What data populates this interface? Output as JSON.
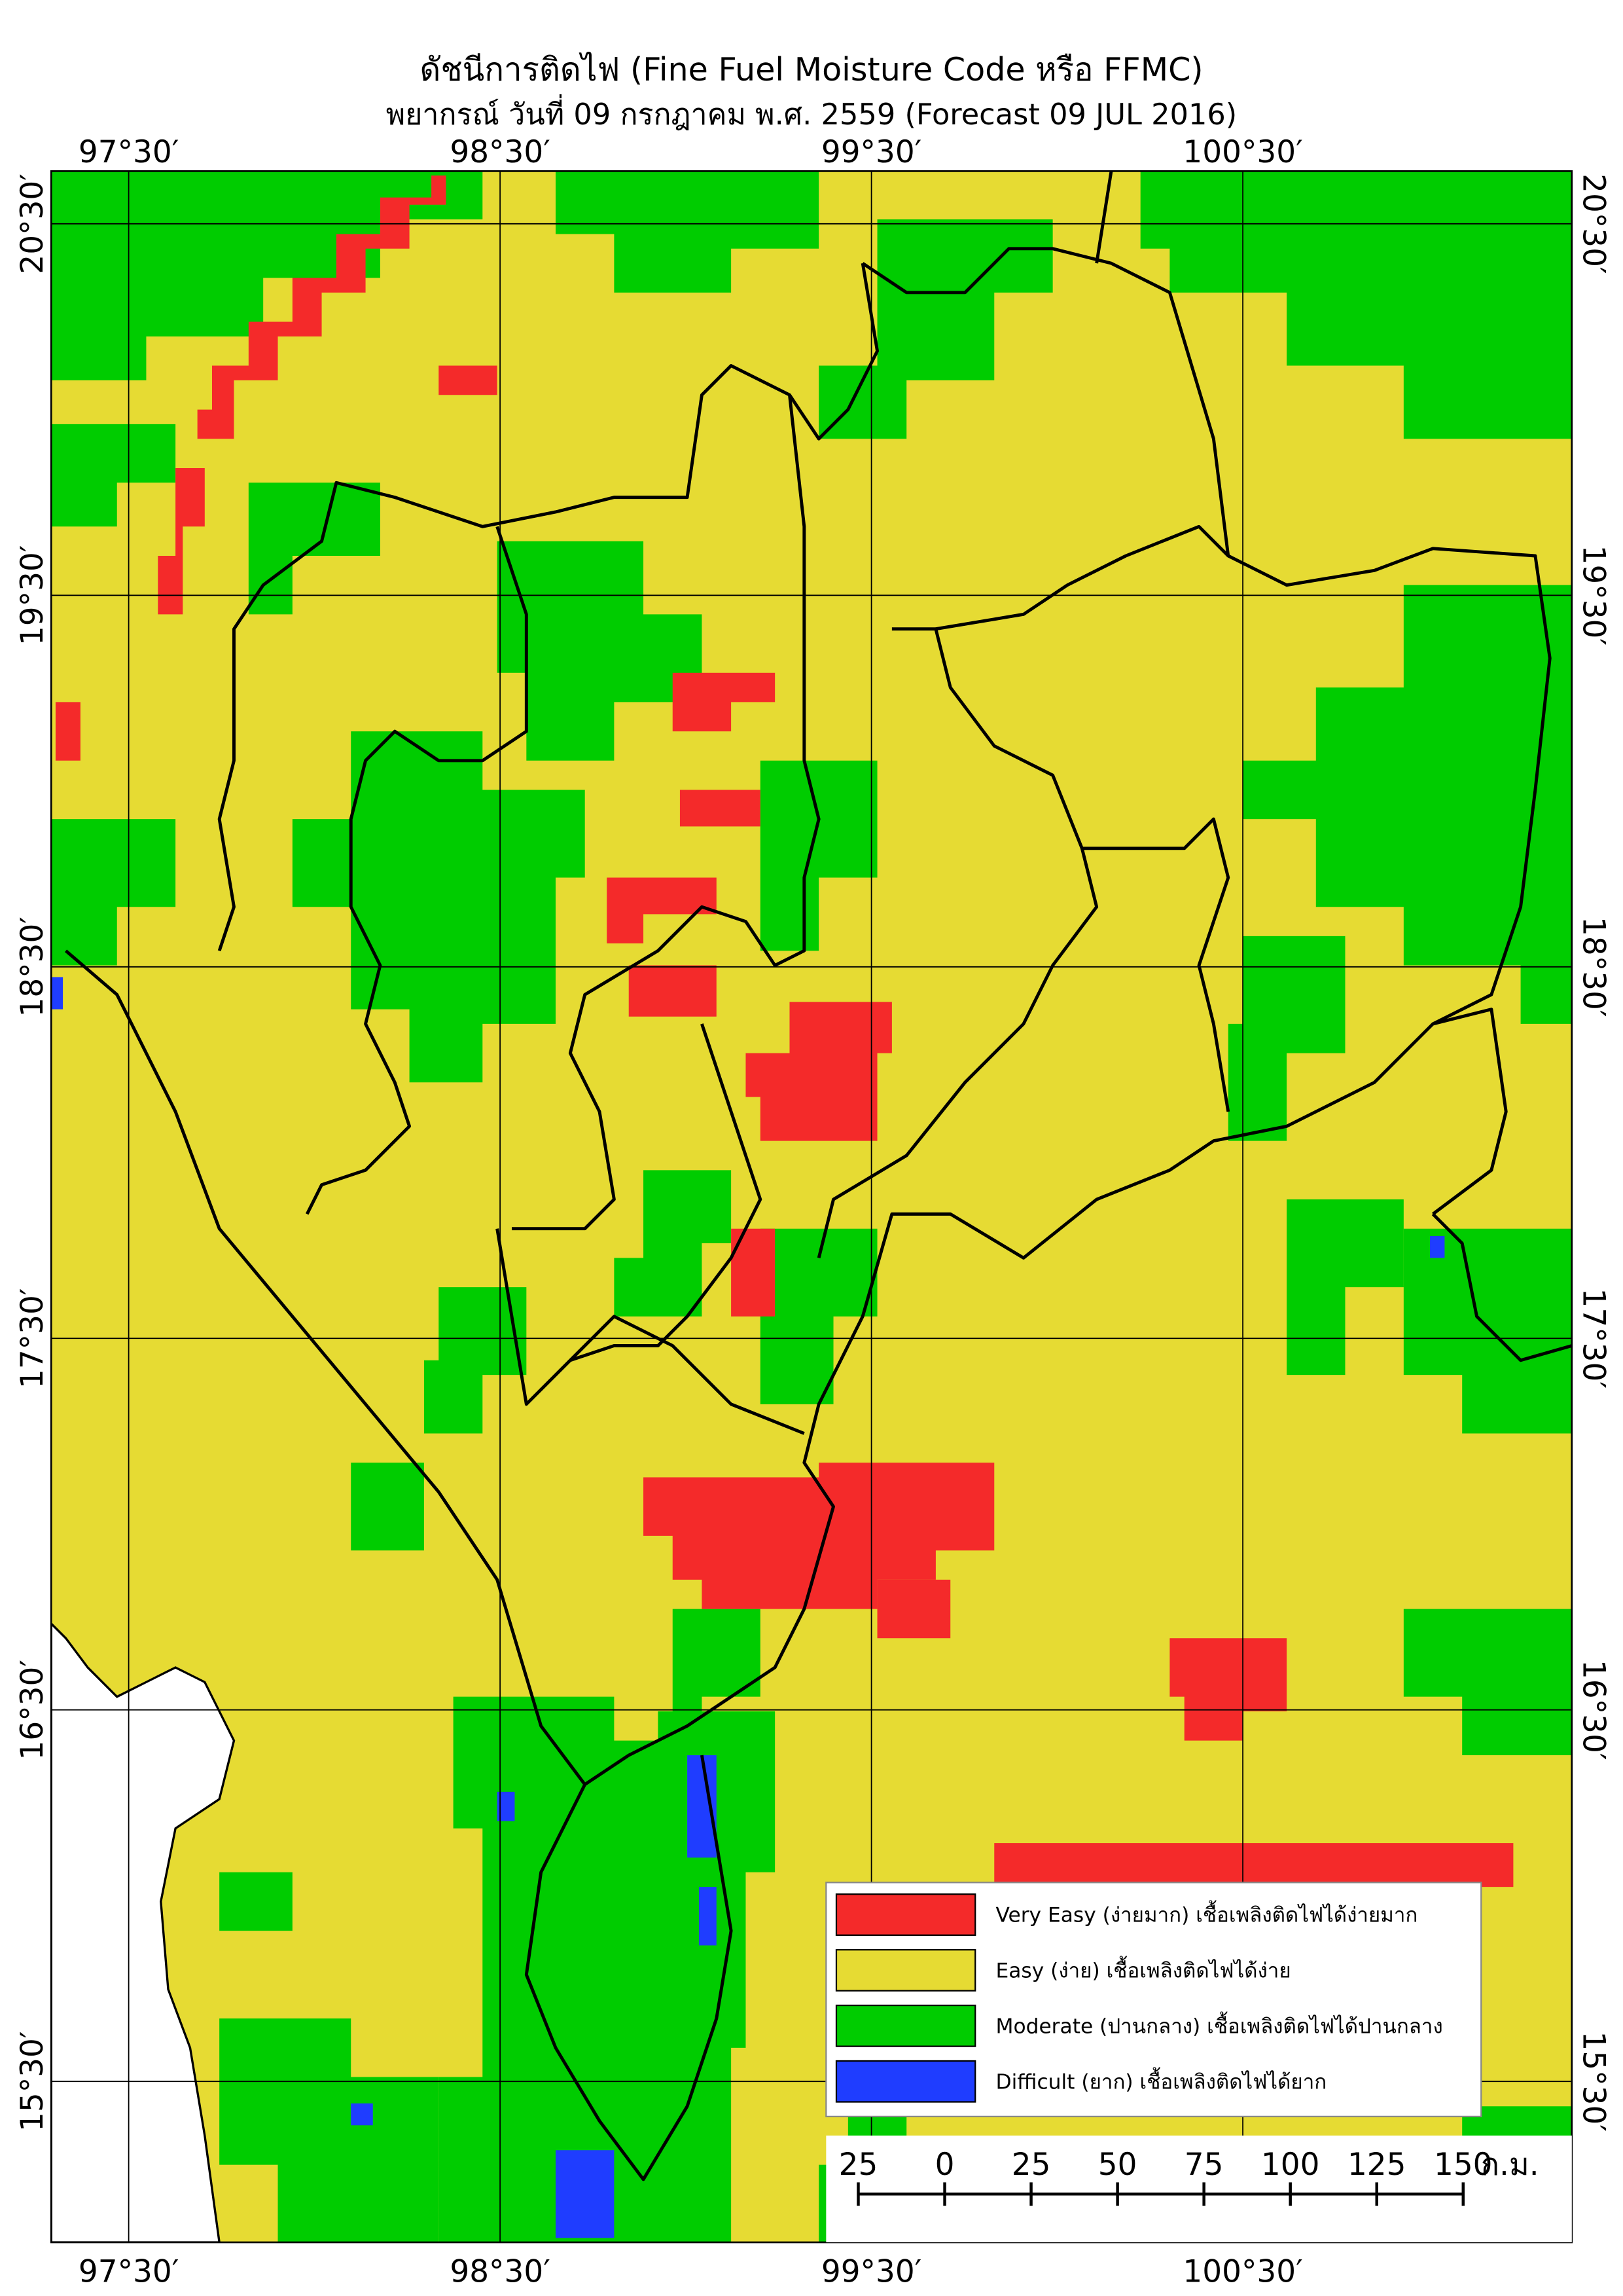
{
  "header": {
    "title": "ดัชนีการติดไฟ (Fine Fuel Moisture Code หรือ FFMC)",
    "subtitle": "พยากรณ์ วันที่ 09 กรกฎาคม พ.ศ. 2559 (Forecast 09 JUL 2016)"
  },
  "map": {
    "longitude_labels": [
      "97°30′",
      "98°30′",
      "99°30′",
      "100°30′"
    ],
    "latitude_labels": [
      "20°30′",
      "19°30′",
      "18°30′",
      "17°30′",
      "16°30′",
      "15°30′"
    ]
  },
  "legend": {
    "items": [
      {
        "label": "Very Easy (ง่ายมาก) เชื้อเพลิงติดไฟได้ง่ายมาก",
        "color": "#f42a2a"
      },
      {
        "label": "Easy (ง่าย) เชื้อเพลิงติดไฟได้ง่าย",
        "color": "#e6db33"
      },
      {
        "label": "Moderate (ปานกลาง) เชื้อเพลิงติดไฟได้ปานกลาง",
        "color": "#00cc00"
      },
      {
        "label": "Difficult (ยาก) เชื้อเพลิงติดไฟได้ยาก",
        "color": "#1f3dff"
      }
    ]
  },
  "scale_bar": {
    "labels": [
      25,
      0,
      25,
      50,
      75,
      100,
      125,
      150
    ],
    "unit": "ก.ม."
  }
}
